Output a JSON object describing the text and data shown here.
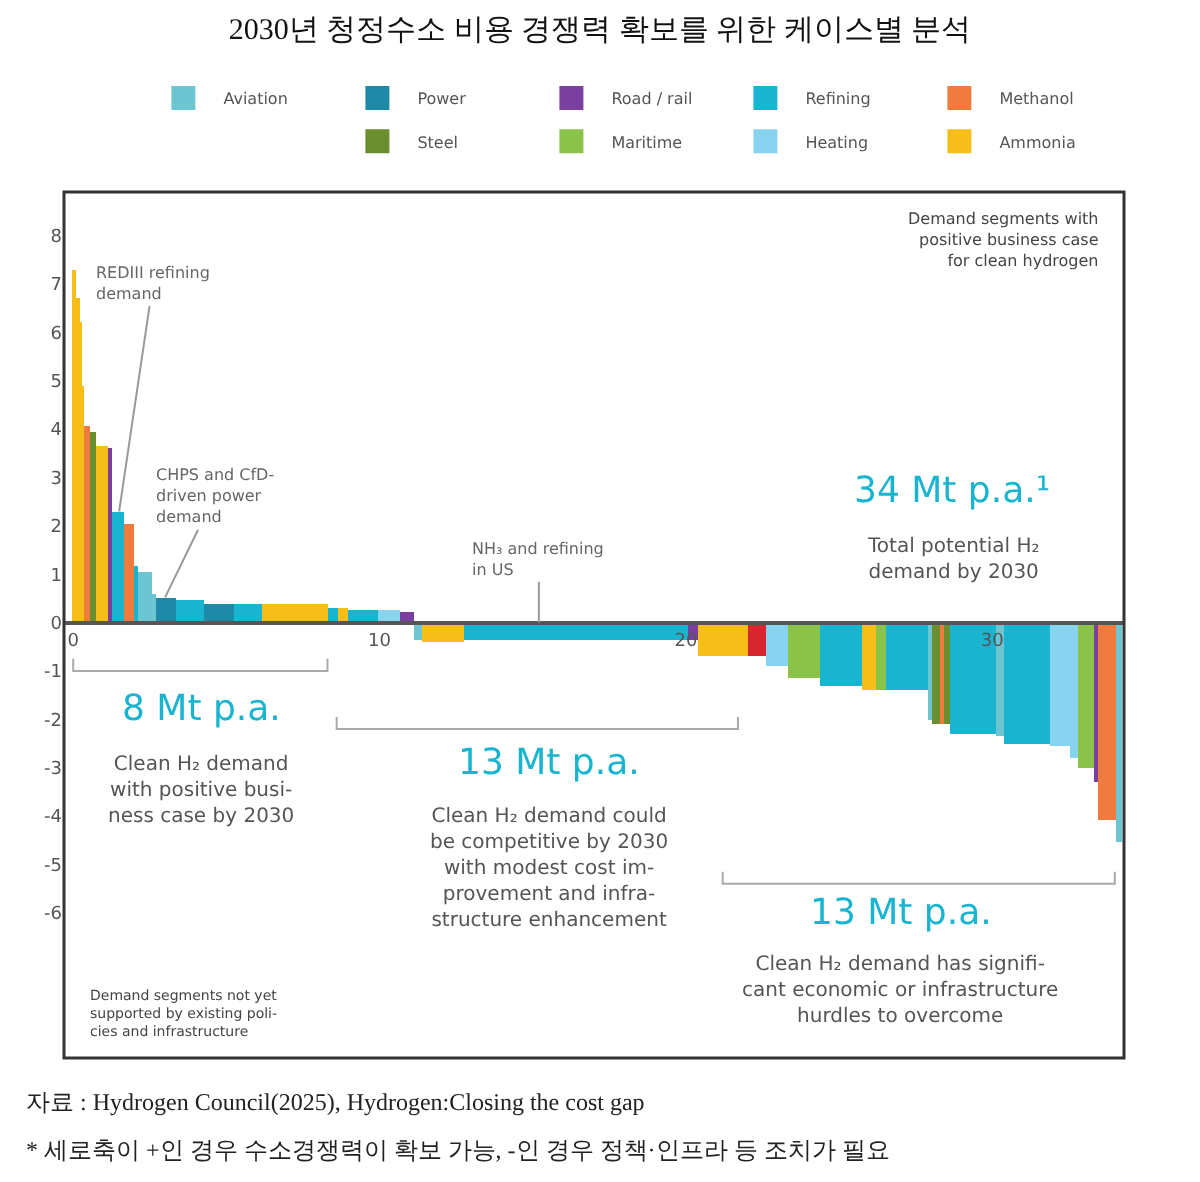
{
  "chart_data": {
    "type": "histogram",
    "title": "2030년 청정수소 비용 경쟁력 확보를 위한 케이스별 분석",
    "bins": [
      0,
      0.09,
      0.2,
      0.26,
      0.35,
      0.55,
      0.74,
      1.13,
      1.24,
      1.68,
      1.96,
      2.1,
      2.59,
      2.72,
      3.35,
      4.3,
      5.23,
      6.14,
      8.32,
      8.65,
      8.97,
      9.96,
      10.68,
      11.1,
      11.4,
      12.75,
      16.4,
      20.1,
      20.4,
      22.0,
      22.6,
      23.3,
      24.4,
      25.75,
      26.2,
      26.5,
      27.9,
      28.05,
      28.3,
      28.4,
      28.6,
      30.1,
      30.4,
      31.9,
      32.55,
      32.8,
      33.3,
      33.45,
      34.05,
      34.25
    ],
    "series": [
      {
        "name": "Aviation",
        "color": "#6cc5d1",
        "values": [
          null,
          null,
          null,
          null,
          null,
          null,
          null,
          null,
          null,
          null,
          null,
          1.05,
          0.6,
          null,
          null,
          null,
          null,
          null,
          null,
          null,
          null,
          null,
          null,
          -0.35,
          null,
          null,
          null,
          null,
          null,
          null,
          null,
          null,
          null,
          null,
          null,
          null,
          -2.0,
          null,
          null,
          null,
          null,
          -2.35,
          null,
          null,
          null,
          null,
          null,
          null,
          -4.55
        ]
      },
      {
        "name": "Power",
        "color": "#1e8aa8",
        "values": [
          null,
          null,
          null,
          null,
          null,
          null,
          null,
          null,
          null,
          null,
          null,
          null,
          null,
          0.52,
          null,
          0.4,
          null,
          null,
          null,
          null,
          null,
          null,
          null,
          null,
          null,
          null,
          null,
          null,
          null,
          null,
          null,
          null,
          null,
          null,
          null,
          null,
          null,
          null,
          null,
          null,
          null,
          null,
          null,
          null,
          null,
          null,
          null,
          null,
          null
        ]
      },
      {
        "name": "Road / rail",
        "color": "#7b3fa0",
        "values": [
          null,
          null,
          null,
          null,
          null,
          null,
          null,
          3.6,
          null,
          null,
          null,
          null,
          null,
          null,
          null,
          null,
          null,
          null,
          null,
          null,
          null,
          null,
          0.22,
          null,
          null,
          null,
          null,
          -0.35,
          null,
          null,
          null,
          null,
          null,
          null,
          null,
          null,
          null,
          null,
          null,
          null,
          null,
          null,
          null,
          null,
          null,
          null,
          -3.3,
          null,
          null
        ]
      },
      {
        "name": "Refining",
        "color": "#19b4cf",
        "values": [
          null,
          null,
          null,
          null,
          null,
          null,
          null,
          null,
          2.3,
          null,
          1.15,
          null,
          null,
          null,
          0.45,
          null,
          0.38,
          null,
          0.3,
          null,
          0.25,
          null,
          null,
          null,
          null,
          -0.35,
          -0.35,
          null,
          null,
          null,
          null,
          null,
          -1.3,
          null,
          null,
          -1.4,
          null,
          null,
          null,
          null,
          -2.3,
          null,
          -2.5,
          null,
          null,
          null,
          null,
          null,
          null
        ]
      },
      {
        "name": "Methanol",
        "color": "#f07b3f",
        "values": [
          null,
          null,
          null,
          null,
          4.05,
          null,
          null,
          null,
          null,
          2.05,
          null,
          null,
          null,
          null,
          null,
          null,
          null,
          null,
          null,
          null,
          null,
          null,
          null,
          null,
          null,
          null,
          null,
          null,
          null,
          null,
          null,
          null,
          null,
          null,
          null,
          null,
          null,
          null,
          -2.1,
          null,
          null,
          null,
          null,
          null,
          null,
          null,
          null,
          -4.1,
          null
        ]
      },
      {
        "name": "Steel",
        "color": "#6b8e2f",
        "values": [
          null,
          null,
          null,
          null,
          null,
          3.95,
          null,
          null,
          null,
          null,
          null,
          null,
          null,
          null,
          null,
          null,
          null,
          null,
          null,
          null,
          null,
          null,
          null,
          null,
          null,
          null,
          null,
          null,
          null,
          null,
          null,
          null,
          null,
          null,
          null,
          null,
          null,
          -2.1,
          null,
          -2.1,
          null,
          null,
          null,
          null,
          null,
          null,
          null,
          null,
          null
        ]
      },
      {
        "name": "Maritime",
        "color": "#8bc34a",
        "values": [
          null,
          null,
          null,
          null,
          null,
          null,
          null,
          null,
          null,
          null,
          null,
          null,
          null,
          null,
          null,
          null,
          null,
          null,
          null,
          null,
          null,
          null,
          null,
          null,
          null,
          null,
          null,
          null,
          null,
          null,
          null,
          -1.15,
          null,
          null,
          -1.4,
          null,
          null,
          null,
          null,
          null,
          null,
          null,
          null,
          null,
          null,
          -3.0,
          null,
          null,
          null
        ]
      },
      {
        "name": "Heating",
        "color": "#87d3f0",
        "values": [
          null,
          null,
          null,
          null,
          null,
          null,
          null,
          null,
          null,
          null,
          null,
          null,
          null,
          null,
          null,
          null,
          null,
          null,
          null,
          null,
          null,
          0.28,
          null,
          null,
          null,
          null,
          null,
          null,
          null,
          null,
          -0.9,
          null,
          null,
          null,
          null,
          null,
          null,
          null,
          null,
          null,
          null,
          null,
          null,
          -2.55,
          -2.8,
          null,
          null,
          null,
          null
        ]
      },
      {
        "name": "Ammonia",
        "color": "#f7be1a",
        "values": [
          7.3,
          6.7,
          6.2,
          4.9,
          null,
          null,
          3.65,
          null,
          null,
          null,
          null,
          null,
          null,
          null,
          null,
          null,
          null,
          0.37,
          null,
          0.3,
          null,
          null,
          null,
          null,
          -0.4,
          null,
          null,
          null,
          -0.7,
          null,
          null,
          null,
          null,
          -1.4,
          null,
          null,
          null,
          null,
          null,
          null,
          null,
          null,
          null,
          null,
          null,
          null,
          null,
          null,
          null
        ]
      },
      {
        "color": "#d7262f",
        "values": [
          null,
          null,
          null,
          null,
          null,
          null,
          null,
          null,
          null,
          null,
          null,
          null,
          null,
          null,
          null,
          null,
          null,
          null,
          null,
          null,
          null,
          null,
          null,
          null,
          null,
          null,
          null,
          null,
          null,
          -0.7,
          null,
          null,
          null,
          null,
          null,
          null,
          null,
          null,
          null,
          null,
          null,
          null,
          null,
          null,
          null,
          null,
          null,
          null,
          null
        ]
      }
    ],
    "xlim": [
      -0.3,
      34.3
    ],
    "xticks": [
      0,
      10,
      20,
      30
    ],
    "ylim": [
      -9.0,
      8.9
    ],
    "yticks": [
      -6,
      -5,
      -4,
      -3,
      -2,
      -1,
      0,
      1,
      2,
      3,
      4,
      5,
      6,
      7,
      8
    ],
    "legend": "top",
    "annotations": [
      "Demand segments with\npositive business case\nfor clean hydrogen",
      {
        "text": "REDIII refining\ndemand",
        "x": 1.5,
        "y": 2.3
      },
      {
        "text": "CHPS and CfD-\ndriven power\ndemand",
        "x": 3.0,
        "y": 0.52
      },
      {
        "text": "NH₃ and refining\nin US",
        "x": 15.2,
        "y": 0
      },
      "34 Mt p.a.¹",
      "Total potential H₂\ndemand by 2030",
      "8 Mt p.a.",
      "Clean H₂ demand\nwith positive busi-\nness case by 2030",
      "13 Mt p.a.",
      "Clean H₂ demand could\nbe competitive by 2030\nwith modest cost im-\nprovement and infra-\nstructure enhancement",
      "13 Mt p.a.",
      "Clean H₂ demand has signifi-\ncant economic or infrastructure\nhurdles to overcome",
      "Demand segments not yet\nsupported by existing poli-\ncies and infrastructure",
      "자료 : Hydrogen Council(2025), Hydrogen:Closing the cost gap",
      "* 세로축이 +인 경우 수소경쟁력이 확보 가능, -인 경우 정책·인프라 등 조치가 필요"
    ]
  }
}
